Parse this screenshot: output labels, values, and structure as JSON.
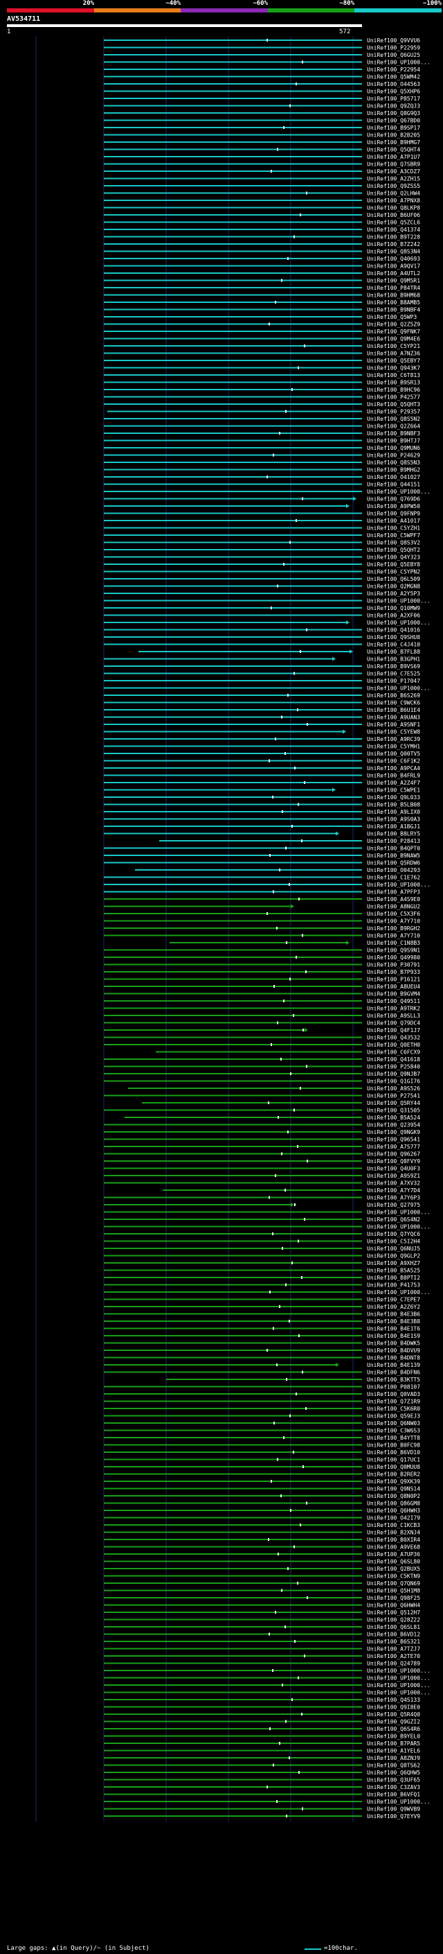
{
  "header": {
    "query_id": "AV534711",
    "start_pos": "1",
    "end_pos": "572",
    "scale_labels": [
      "20%",
      "~40%",
      "~60%",
      "~80%",
      "~100%"
    ],
    "scale_colors": [
      "#e0102a",
      "#e87c1c",
      "#8a2ab4",
      "#18a018",
      "#19c8c8"
    ]
  },
  "footer": {
    "gaps_text": "Large gaps: ▲(in Query)/~ (in Subject)",
    "legend_text": "=100char."
  },
  "chart_data": {
    "type": "alignment-overview",
    "title": "AV534711",
    "query_length": 572,
    "axis_range": [
      1,
      572
    ],
    "colors": {
      "high_identity": "#19c8c8",
      "mid_identity": "#18a018",
      "marker": "#ffffff"
    },
    "hits": [
      "UniRef100_Q9VVU6",
      "UniRef100_P22959",
      "UniRef100_Q6GU25",
      "UniRef100_UP1000...",
      "UniRef100_P22954",
      "UniRef100_Q5WM42",
      "UniRef100_O44563",
      "UniRef100_Q5XHP6",
      "UniRef100_P85717",
      "UniRef100_Q9ZQJ3",
      "UniRef100_Q8G9Q3",
      "UniRef100_Q67BD0",
      "UniRef100_B9SP17",
      "UniRef100_B2B205",
      "UniRef100_B9HMG7",
      "UniRef100_Q5QHT4",
      "UniRef100_A7P1U7",
      "UniRef100_Q7SBR9",
      "UniRef100_A3CDZ7",
      "UniRef100_A2ZH15",
      "UniRef100_Q9ZSS5",
      "UniRef100_Q2LHW4",
      "UniRef100_A7PNX8",
      "UniRef100_Q8LKP8",
      "UniRef100_B6UF06",
      "UniRef100_Q5ZCL6",
      "UniRef100_Q41374",
      "UniRef100_B9T228",
      "UniRef100_B7Z242",
      "UniRef100_Q8S3N4",
      "UniRef100_Q40693",
      "UniRef100_A9QV17",
      "UniRef100_A4UTL2",
      "UniRef100_Q9M5R1",
      "UniRef100_P84TR4",
      "UniRef100_B9HM68",
      "UniRef100_B8AMB5",
      "UniRef100_B9NBF4",
      "UniRef100_Q5WP3",
      "UniRef100_Q2Z5Z9",
      "UniRef100_Q9FNK7",
      "UniRef100_Q9M4E6",
      "UniRef100_C5YP21",
      "UniRef100_A7NZ36",
      "UniRef100_Q5EBY7",
      "UniRef100_Q943K7",
      "UniRef100_C6T813",
      "UniRef100_B9SR13",
      "UniRef100_B9HC96",
      "UniRef100_P42577",
      "UniRef100_Q5QHT3",
      "UniRef100_P29357",
      "UniRef100_Q8S5N2",
      "UniRef100_Q2Z664",
      "UniRef100_B9NBF3",
      "UniRef100_B9HTJ7",
      "UniRef100_Q9MUN6",
      "UniRef100_P24629",
      "UniRef100_Q8S5N3",
      "UniRef100_B9MHG2",
      "UniRef100_O41027",
      "UniRef100_Q44151",
      "UniRef100_UP1000...",
      "UniRef100_Q769D6",
      "UniRef100_A9PW50",
      "UniRef100_Q9FNP9",
      "UniRef100_A41017",
      "UniRef100_C5YZH1",
      "UniRef100_C5WPF7",
      "UniRef100_Q8S3V2",
      "UniRef100_Q5QHT2",
      "UniRef100_Q4Y323",
      "UniRef100_Q5EBY8",
      "UniRef100_C5YPN2",
      "UniRef100_Q6L509",
      "UniRef100_Q2MGN8",
      "UniRef100_A2Y5P3",
      "UniRef100_UP1000...",
      "UniRef100_Q10MW9",
      "UniRef100_A2XF06",
      "UniRef100_UP1000...",
      "UniRef100_Q41016",
      "UniRef100_Q9SHU8",
      "UniRef100_C4J410",
      "UniRef100_B7FL88",
      "UniRef100_B3GPH1",
      "UniRef100_B9VS69",
      "UniRef100_C7E525",
      "UniRef100_P17047",
      "UniRef100_UP1000...",
      "UniRef100_B6S269",
      "UniRef100_C9WCK6",
      "UniRef100_B6U1E4",
      "UniRef100_A9UAN3",
      "UniRef100_A9SNF1",
      "UniRef100_C5YEW8",
      "UniRef100_A9RC39",
      "UniRef100_C5YMH1",
      "UniRef100_Q00TV5",
      "UniRef100_C6F1K2",
      "UniRef100_A9PCA4",
      "UniRef100_B4FRL9",
      "UniRef100_A2Z4F7",
      "UniRef100_C5WPE1",
      "UniRef100_Q9L033",
      "UniRef100_B5LB08",
      "UniRef100_A9LIX0",
      "UniRef100_A9S0A3",
      "UniRef100_A1BGJ1",
      "UniRef100_B8LRY5",
      "UniRef100_P28413",
      "UniRef100_B4QPT0",
      "UniRef100_B9NAW5",
      "UniRef100_Q5RDW6",
      "UniRef100_O04293",
      "UniRef100_C1E762",
      "UniRef100_UP1000...",
      "UniRef100_A7PFP3",
      "UniRef100_A4S9E0",
      "UniRef100_A8NGU2",
      "UniRef100_C5X3F6",
      "UniRef100_A7Y710",
      "UniRef100_B9RGH2",
      "UniRef100_A7Y710",
      "UniRef100_C1N8B3",
      "UniRef100_Q9S9N1",
      "UniRef100_Q49980",
      "UniRef100_P30791",
      "UniRef100_B7P933",
      "UniRef100_P16121",
      "UniRef100_A8UEU4",
      "UniRef100_B9GVM4",
      "UniRef100_Q49511",
      "UniRef100_A9TRK2",
      "UniRef100_A9SLL3",
      "UniRef100_Q79DC4",
      "UniRef100_Q4F1J7",
      "UniRef100_Q43532",
      "UniRef100_Q0ETH0",
      "UniRef100_C6FCX9",
      "UniRef100_Q41618",
      "UniRef100_P25840",
      "UniRef100_Q9NJB7",
      "UniRef100_Q1GI76",
      "UniRef100_A9S526",
      "UniRef100_P27541",
      "UniRef100_Q5RY44",
      "UniRef100_Q31505",
      "UniRef100_B5A524",
      "UniRef100_Q23954",
      "UniRef100_Q9NGK9",
      "UniRef100_Q96541",
      "UniRef100_A7S777",
      "UniRef100_Q96267",
      "UniRef100_Q8FVY9",
      "UniRef100_Q4U0F3",
      "UniRef100_A9S9Z1",
      "UniRef100_A7XV32",
      "UniRef100_A7Y7D4",
      "UniRef100_A7Y6P3",
      "UniRef100_Q27975",
      "UniRef100_UP1000...",
      "UniRef100_Q6S4N2",
      "UniRef100_UP1000...",
      "UniRef100_Q7YQC6",
      "UniRef100_C5I2H4",
      "UniRef100_Q6NUJ5",
      "UniRef100_Q9GLP2",
      "UniRef100_A9XHZ7",
      "UniRef100_B5A525",
      "UniRef100_B8PTI2",
      "UniRef100_P41753",
      "UniRef100_UP1000...",
      "UniRef100_C7EPE7",
      "UniRef100_A2Z6Y2",
      "UniRef100_B4E3B6",
      "UniRef100_B4E3B8",
      "UniRef100_B4E1T6",
      "UniRef100_B4E1S9",
      "UniRef100_B4DWK5",
      "UniRef100_B4DVU9",
      "UniRef100_B4DNT8",
      "UniRef100_B4E139",
      "UniRef100_B4DFN6",
      "UniRef100_B3KTT5",
      "UniRef100_P08107",
      "UniRef100_Q0VAD3",
      "UniRef100_Q7Z1R9",
      "UniRef100_C5K6R0",
      "UniRef100_Q59EJ3",
      "UniRef100_Q6NW03",
      "UniRef100_C3W6S3",
      "UniRef100_B4YTT8",
      "UniRef100_B0FC98",
      "UniRef100_B6VD10",
      "UniRef100_Q17UC1",
      "UniRef100_Q0MUU8",
      "UniRef100_B2RER2",
      "UniRef100_Q9XK39",
      "UniRef100_Q9NS14",
      "UniRef100_Q8N0P2",
      "UniRef100_Q86GM8",
      "UniRef100_Q6HWH3",
      "UniRef100_O42I79",
      "UniRef100_C1KCB3",
      "UniRef100_B2XNJ4",
      "UniRef100_B0XIR4",
      "UniRef100_A9VE68",
      "UniRef100_A7UP36",
      "UniRef100_Q6SL80",
      "UniRef100_Q2BUX5",
      "UniRef100_C5KTN9",
      "UniRef100_Q7QN69",
      "UniRef100_Q5H1M8",
      "UniRef100_Q98F25",
      "UniRef100_Q6HWH4",
      "UniRef100_Q512H7",
      "UniRef100_Q28Z22",
      "UniRef100_Q6SL81",
      "UniRef100_B6VD12",
      "UniRef100_B6S321",
      "UniRef100_A7TZJ7",
      "UniRef100_A2TE70",
      "UniRef100_Q24789",
      "UniRef100_UP1000...",
      "UniRef100_UP1000...",
      "UniRef100_UP1000...",
      "UniRef100_UP1000...",
      "UniRef100_Q4S133",
      "UniRef100_Q9I8E0",
      "UniRef100_Q5R4Q0",
      "UniRef100_Q9GZI2",
      "UniRef100_Q6S4R6",
      "UniRef100_B9YEL0",
      "UniRef100_B7PAR5",
      "UniRef100_A1YEL6",
      "UniRef100_A8ZNJ9",
      "UniRef100_Q8TS62",
      "UniRef100_Q6QHW5",
      "UniRef100_Q3UF65",
      "UniRef100_C3ZAV3",
      "UniRef100_B6VFQ1",
      "UniRef100_UP1000...",
      "UniRef100_Q9WVB9",
      "UniRef100_Q7EYV9"
    ]
  }
}
